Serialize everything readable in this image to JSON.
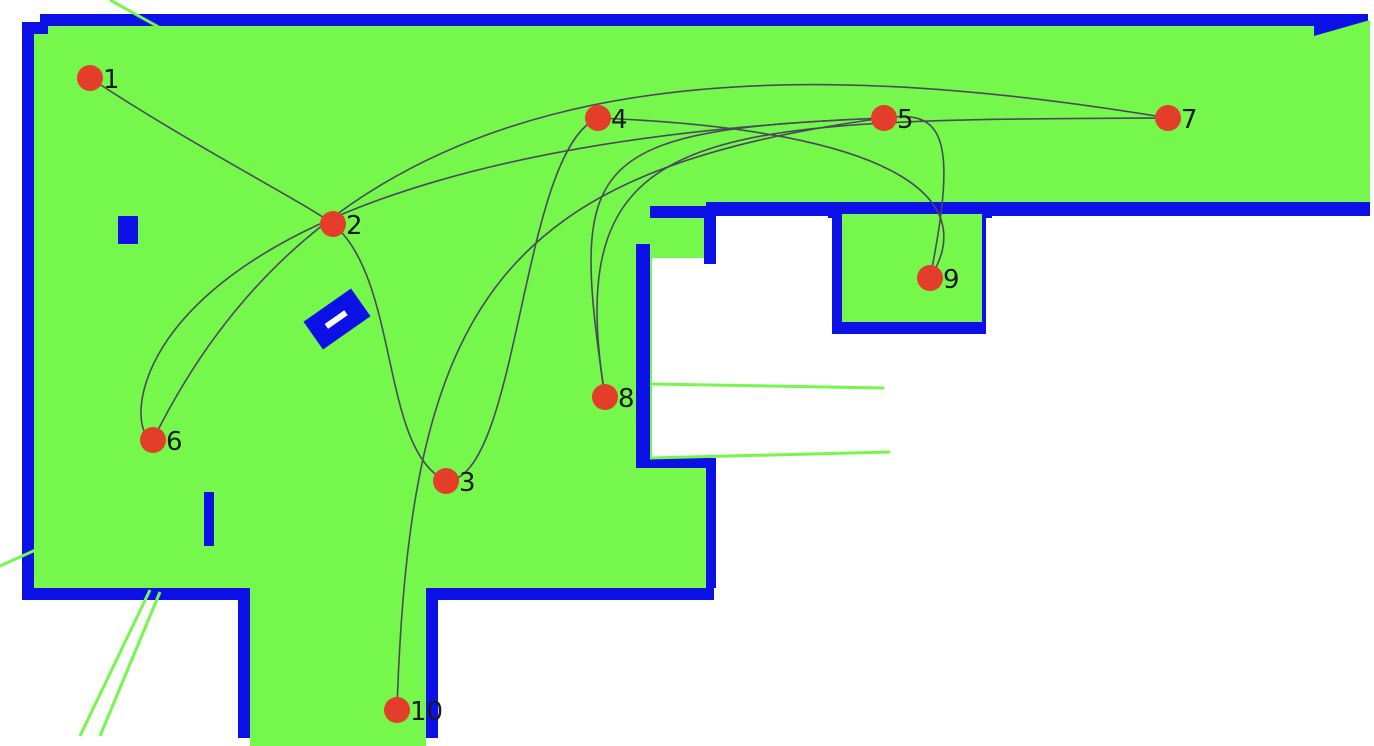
{
  "colors": {
    "free_space": "#76f74c",
    "wall": "#0a10e6",
    "unknown": "#ffffff",
    "waypoint": "#e43d2a",
    "route": "#4a4a5a",
    "label": "#1a1a1a"
  },
  "waypoints": [
    {
      "id": "1",
      "label": "1"
    },
    {
      "id": "2",
      "label": "2"
    },
    {
      "id": "3",
      "label": "3"
    },
    {
      "id": "4",
      "label": "4"
    },
    {
      "id": "5",
      "label": "5"
    },
    {
      "id": "6",
      "label": "6"
    },
    {
      "id": "7",
      "label": "7"
    },
    {
      "id": "8",
      "label": "8"
    },
    {
      "id": "9",
      "label": "9"
    },
    {
      "id": "10",
      "label": "10"
    }
  ],
  "routes": [
    {
      "from": "1",
      "to": "2"
    },
    {
      "from": "2",
      "to": "3"
    },
    {
      "from": "3",
      "to": "4"
    },
    {
      "from": "4",
      "to": "9"
    },
    {
      "from": "9",
      "to": "5"
    },
    {
      "from": "5",
      "to": "6"
    },
    {
      "from": "6",
      "to": "7"
    },
    {
      "from": "7",
      "to": "8"
    },
    {
      "from": "8",
      "to": "5"
    },
    {
      "from": "5",
      "to": "10"
    }
  ]
}
